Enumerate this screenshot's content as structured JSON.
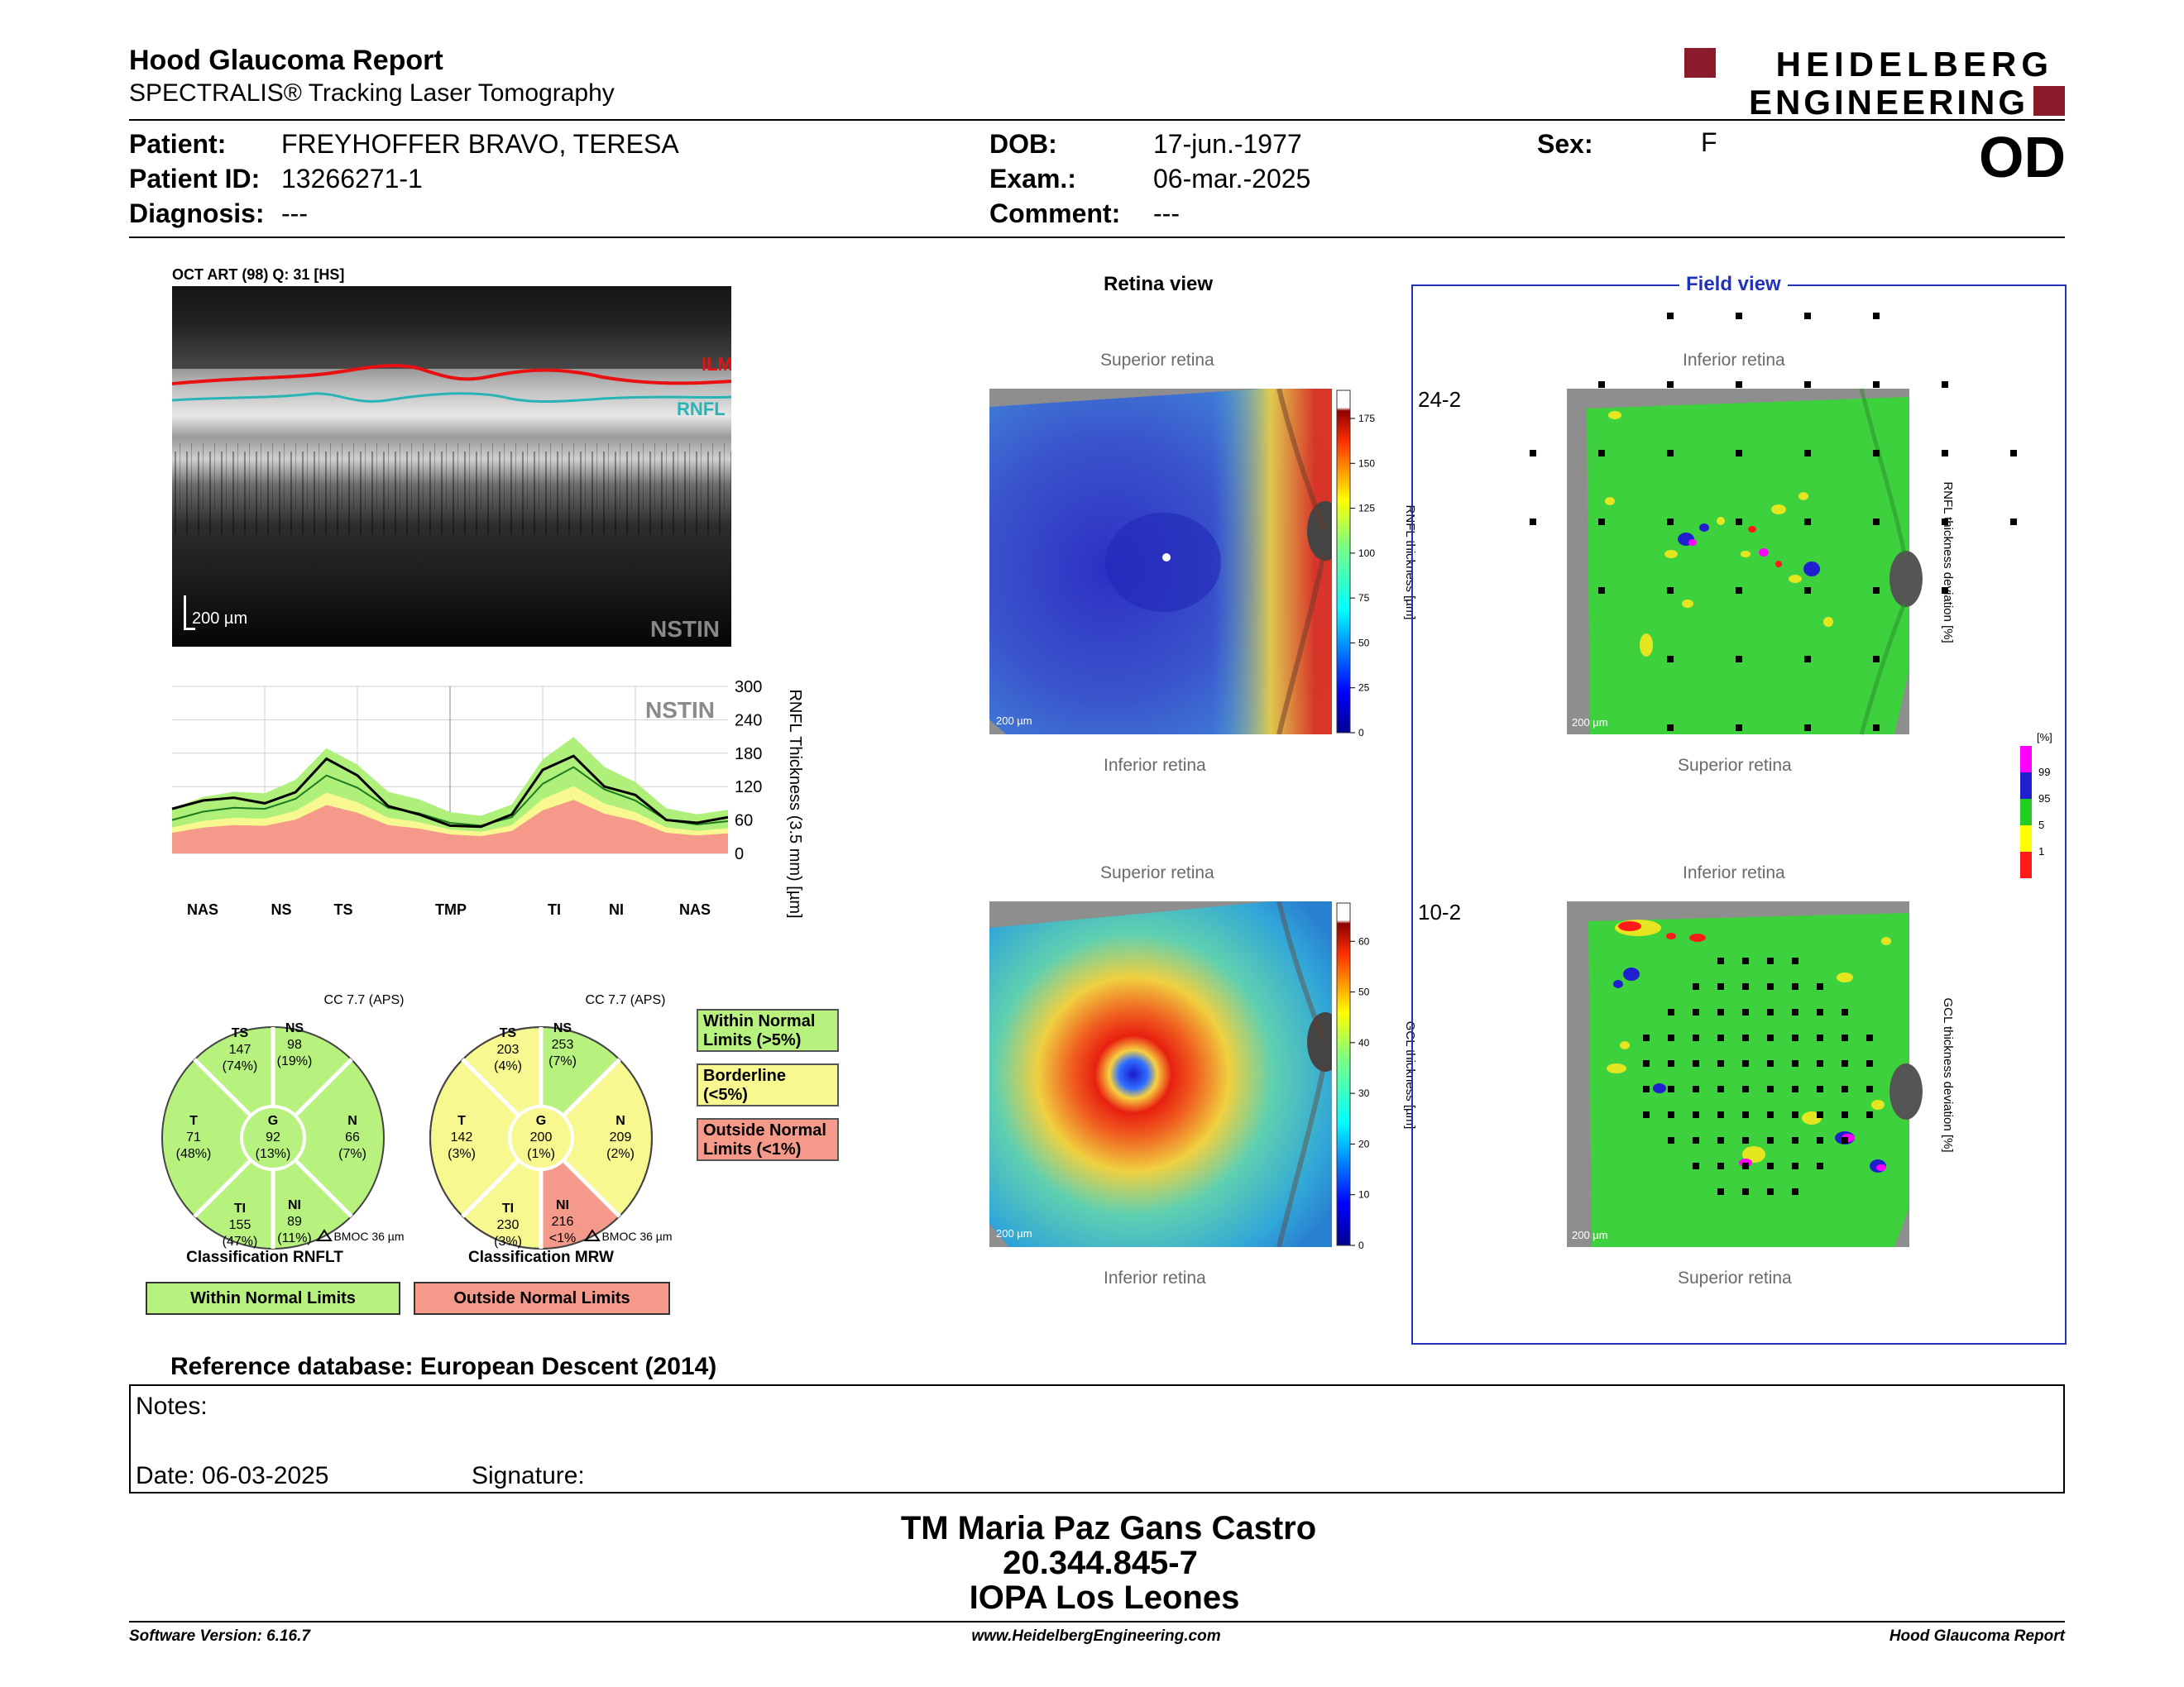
{
  "header": {
    "title": "Hood Glaucoma Report",
    "subtitle": "SPECTRALIS® Tracking Laser Tomography",
    "logo_line1": "HEIDELBERG",
    "logo_line2": "ENGINEERING",
    "eye": "OD"
  },
  "patient": {
    "patient_label": "Patient:",
    "patient_value": "FREYHOFFER BRAVO, TERESA",
    "id_label": "Patient ID:",
    "id_value": "13266271-1",
    "diag_label": "Diagnosis:",
    "diag_value": "---",
    "dob_label": "DOB:",
    "dob_value": "17-jun.-1977",
    "exam_label": "Exam.:",
    "exam_value": "06-mar.-2025",
    "comment_label": "Comment:",
    "comment_value": "---",
    "sex_label": "Sex:",
    "sex_value": "F"
  },
  "oct": {
    "title": "OCT ART (98) Q: 31 [HS]",
    "ilm": "ILM",
    "rnfl": "RNFL",
    "scale": "200 µm",
    "nstin": "NSTIN"
  },
  "chart_data": {
    "type": "line",
    "title": "NSTIN",
    "ylabel": "RNFL Thickness (3.5 mm) [µm]",
    "ylim": [
      0,
      300
    ],
    "yticks": [
      0,
      60,
      120,
      180,
      240,
      300
    ],
    "sector_labels": [
      "NAS",
      "NS",
      "TS",
      "TMP",
      "TI",
      "NI",
      "NAS"
    ],
    "x": [
      0,
      20,
      40,
      60,
      80,
      100,
      120,
      140,
      160,
      180,
      200,
      220,
      240,
      260,
      280,
      300,
      320,
      340,
      360
    ],
    "series": [
      {
        "values": [
          80,
          95,
          100,
          90,
          110,
          170,
          140,
          85,
          70,
          50,
          48,
          70,
          150,
          175,
          120,
          105,
          60,
          55,
          65
        ]
      },
      {
        "values": [
          60,
          75,
          82,
          80,
          98,
          140,
          118,
          82,
          72,
          55,
          50,
          65,
          125,
          155,
          115,
          95,
          60,
          52,
          58
        ]
      }
    ]
  },
  "classification": {
    "rnflt": {
      "cc": "CC 7.7 (APS)",
      "TS": {
        "label": "TS",
        "v": "147",
        "p": "(74%)"
      },
      "NS": {
        "label": "NS",
        "v": "98",
        "p": "(19%)"
      },
      "T": {
        "label": "T",
        "v": "71",
        "p": "(48%)"
      },
      "G": {
        "label": "G",
        "v": "92",
        "p": "(13%)"
      },
      "N": {
        "label": "N",
        "v": "66",
        "p": "(7%)"
      },
      "TI": {
        "label": "TI",
        "v": "155",
        "p": "(47%)"
      },
      "NI": {
        "label": "NI",
        "v": "89",
        "p": "(11%)"
      },
      "bmoc": "BMOC 36 µm",
      "title": "Classification RNFLT",
      "result": "Within Normal Limits"
    },
    "mrw": {
      "cc": "CC 7.7 (APS)",
      "TS": {
        "label": "TS",
        "v": "203",
        "p": "(4%)"
      },
      "NS": {
        "label": "NS",
        "v": "253",
        "p": "(7%)"
      },
      "T": {
        "label": "T",
        "v": "142",
        "p": "(3%)"
      },
      "G": {
        "label": "G",
        "v": "200",
        "p": "(1%)"
      },
      "N": {
        "label": "N",
        "v": "209",
        "p": "(2%)"
      },
      "TI": {
        "label": "TI",
        "v": "230",
        "p": "(3%)"
      },
      "NI": {
        "label": "NI",
        "v": "216",
        "p": "<1%"
      },
      "bmoc": "BMOC 36 µm",
      "title": "Classification MRW",
      "result": "Outside Normal Limits"
    },
    "legend": {
      "wnl": "Within Normal Limits (>5%)",
      "bl": "Borderline (<5%)",
      "onl": "Outside Normal Limits (<1%)"
    }
  },
  "retina": {
    "title": "Retina view",
    "superior": "Superior retina",
    "inferior": "Inferior retina",
    "scale": "200 µm",
    "rnfl_axis": "RNFL thickness [µm]",
    "rnfl_ticks": [
      "175",
      "150",
      "125",
      "100",
      "75",
      "50",
      "25",
      "0"
    ],
    "gcl_axis": "GCL thickness [µm]",
    "gcl_ticks": [
      "60",
      "50",
      "40",
      "30",
      "20",
      "10",
      "0"
    ]
  },
  "field": {
    "title": "Field view",
    "label_242": "24-2",
    "label_102": "10-2",
    "inferior": "Inferior retina",
    "superior": "Superior retina",
    "rnfl_dev": "RNFL thickness deviation [%]",
    "gcl_dev": "GCL thickness deviation [%]",
    "pct": "[%]",
    "pct_ticks": [
      "99",
      "95",
      "5",
      "1"
    ],
    "colors": {
      "magenta": "#ff00ff",
      "blue": "#1f1fd0",
      "green": "#22cc22",
      "yellow": "#ffff00",
      "red": "#ff1a1a"
    }
  },
  "reference": "Reference database: European Descent (2014)",
  "notes": {
    "label": "Notes:",
    "date": "Date: 06-03-2025",
    "signature": "Signature:"
  },
  "signer": {
    "name": "TM Maria Paz Gans Castro",
    "id": "20.344.845-7",
    "org": "IOPA Los Leones"
  },
  "footer": {
    "version": "Software Version: 6.16.7",
    "url": "www.HeidelbergEngineering.com",
    "report": "Hood Glaucoma Report"
  }
}
